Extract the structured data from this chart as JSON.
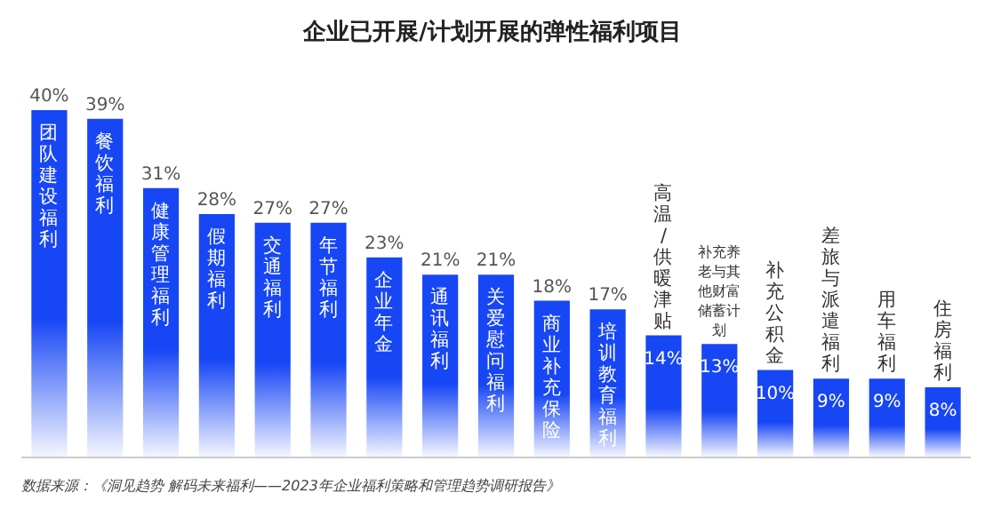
{
  "chart_data": {
    "type": "bar",
    "title": "企业已开展/计划开展的弹性福利项目",
    "categories": [
      "团队建设福利",
      "餐饮福利",
      "健康管理福利",
      "假期福利",
      "交通福利",
      "年节福利",
      "企业年金",
      "通讯福利",
      "关爱慰问福利",
      "商业补充保险",
      "培训教育福利",
      "高温/供暖津贴",
      "补充养老与其他财富储蓄计划",
      "补充公积金",
      "差旅与派遣福利",
      "用车福利",
      "住房福利"
    ],
    "values": [
      40,
      39,
      31,
      28,
      27,
      27,
      23,
      21,
      21,
      18,
      17,
      14,
      13,
      10,
      9,
      9,
      8
    ],
    "value_labels": [
      "40%",
      "39%",
      "31%",
      "28%",
      "27%",
      "27%",
      "23%",
      "21%",
      "21%",
      "18%",
      "17%",
      "14%",
      "13%",
      "10%",
      "9%",
      "9%",
      "8%"
    ],
    "color": "#1746f5",
    "annotations": [
      "数据来源：《洞见趋势 解码未来福利——2023年企业福利策略和管理趋势调研报告》"
    ]
  }
}
